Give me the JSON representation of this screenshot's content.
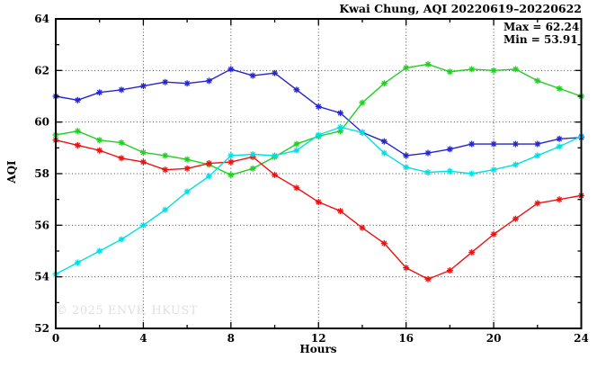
{
  "title": "Kwai Chung, AQI 20220619–20220622",
  "annotations": {
    "max_label": "Max = 62.24",
    "min_label": "Min = 53.91"
  },
  "watermark": "© 2025 ENVF, HKUST",
  "chart_data": {
    "type": "line",
    "title": "Kwai Chung, AQI 20220619–20220622",
    "xlabel": "Hours",
    "ylabel": "AQI",
    "xlim": [
      0,
      24
    ],
    "ylim": [
      52,
      64
    ],
    "x_major_ticks": [
      0,
      4,
      8,
      12,
      16,
      20,
      24
    ],
    "x_minor_tick_step": 2,
    "y_major_ticks": [
      52,
      54,
      56,
      58,
      60,
      62,
      64
    ],
    "y_minor_tick_step": 1,
    "grid": "dotted-at-major-ticks",
    "legend_position": "none",
    "marker": "asterisk",
    "stats": {
      "max": 62.24,
      "min": 53.91
    },
    "x": [
      0,
      1,
      2,
      3,
      4,
      5,
      6,
      7,
      8,
      9,
      10,
      11,
      12,
      13,
      14,
      15,
      16,
      17,
      18,
      19,
      20,
      21,
      22,
      23,
      24
    ],
    "series": [
      {
        "name": "series-blue",
        "color": "#2525cd",
        "values": [
          61.0,
          60.85,
          61.15,
          61.25,
          61.4,
          61.55,
          61.5,
          61.6,
          62.05,
          61.8,
          61.9,
          61.25,
          60.6,
          60.35,
          59.6,
          59.25,
          58.7,
          58.8,
          58.95,
          59.15,
          59.15,
          59.15,
          59.15,
          59.35,
          59.4
        ]
      },
      {
        "name": "series-green",
        "color": "#20d020",
        "values": [
          59.5,
          59.65,
          59.3,
          59.2,
          58.82,
          58.7,
          58.55,
          58.35,
          57.95,
          58.2,
          58.65,
          59.15,
          59.45,
          59.65,
          60.75,
          61.5,
          62.1,
          62.24,
          61.95,
          62.05,
          62.0,
          62.05,
          61.6,
          61.3,
          61.0
        ]
      },
      {
        "name": "series-red",
        "color": "#ee1111",
        "values": [
          59.3,
          59.1,
          58.9,
          58.6,
          58.45,
          58.15,
          58.2,
          58.4,
          58.45,
          58.65,
          57.95,
          57.45,
          56.9,
          56.55,
          55.9,
          55.3,
          54.35,
          53.91,
          54.25,
          54.95,
          55.65,
          56.25,
          56.85,
          57.0,
          57.15
        ]
      },
      {
        "name": "series-cyan",
        "color": "#00e0e4",
        "values": [
          54.1,
          54.55,
          55.0,
          55.45,
          56.0,
          56.6,
          57.3,
          57.9,
          58.7,
          58.75,
          58.7,
          58.9,
          59.5,
          59.8,
          59.6,
          58.8,
          58.25,
          58.05,
          58.1,
          58.0,
          58.15,
          58.35,
          58.7,
          59.05,
          59.45
        ]
      }
    ]
  },
  "colors": {
    "foreground": "#000000",
    "background": "#ffffff",
    "grid": "#444444",
    "watermark": "#e0e0e0"
  }
}
